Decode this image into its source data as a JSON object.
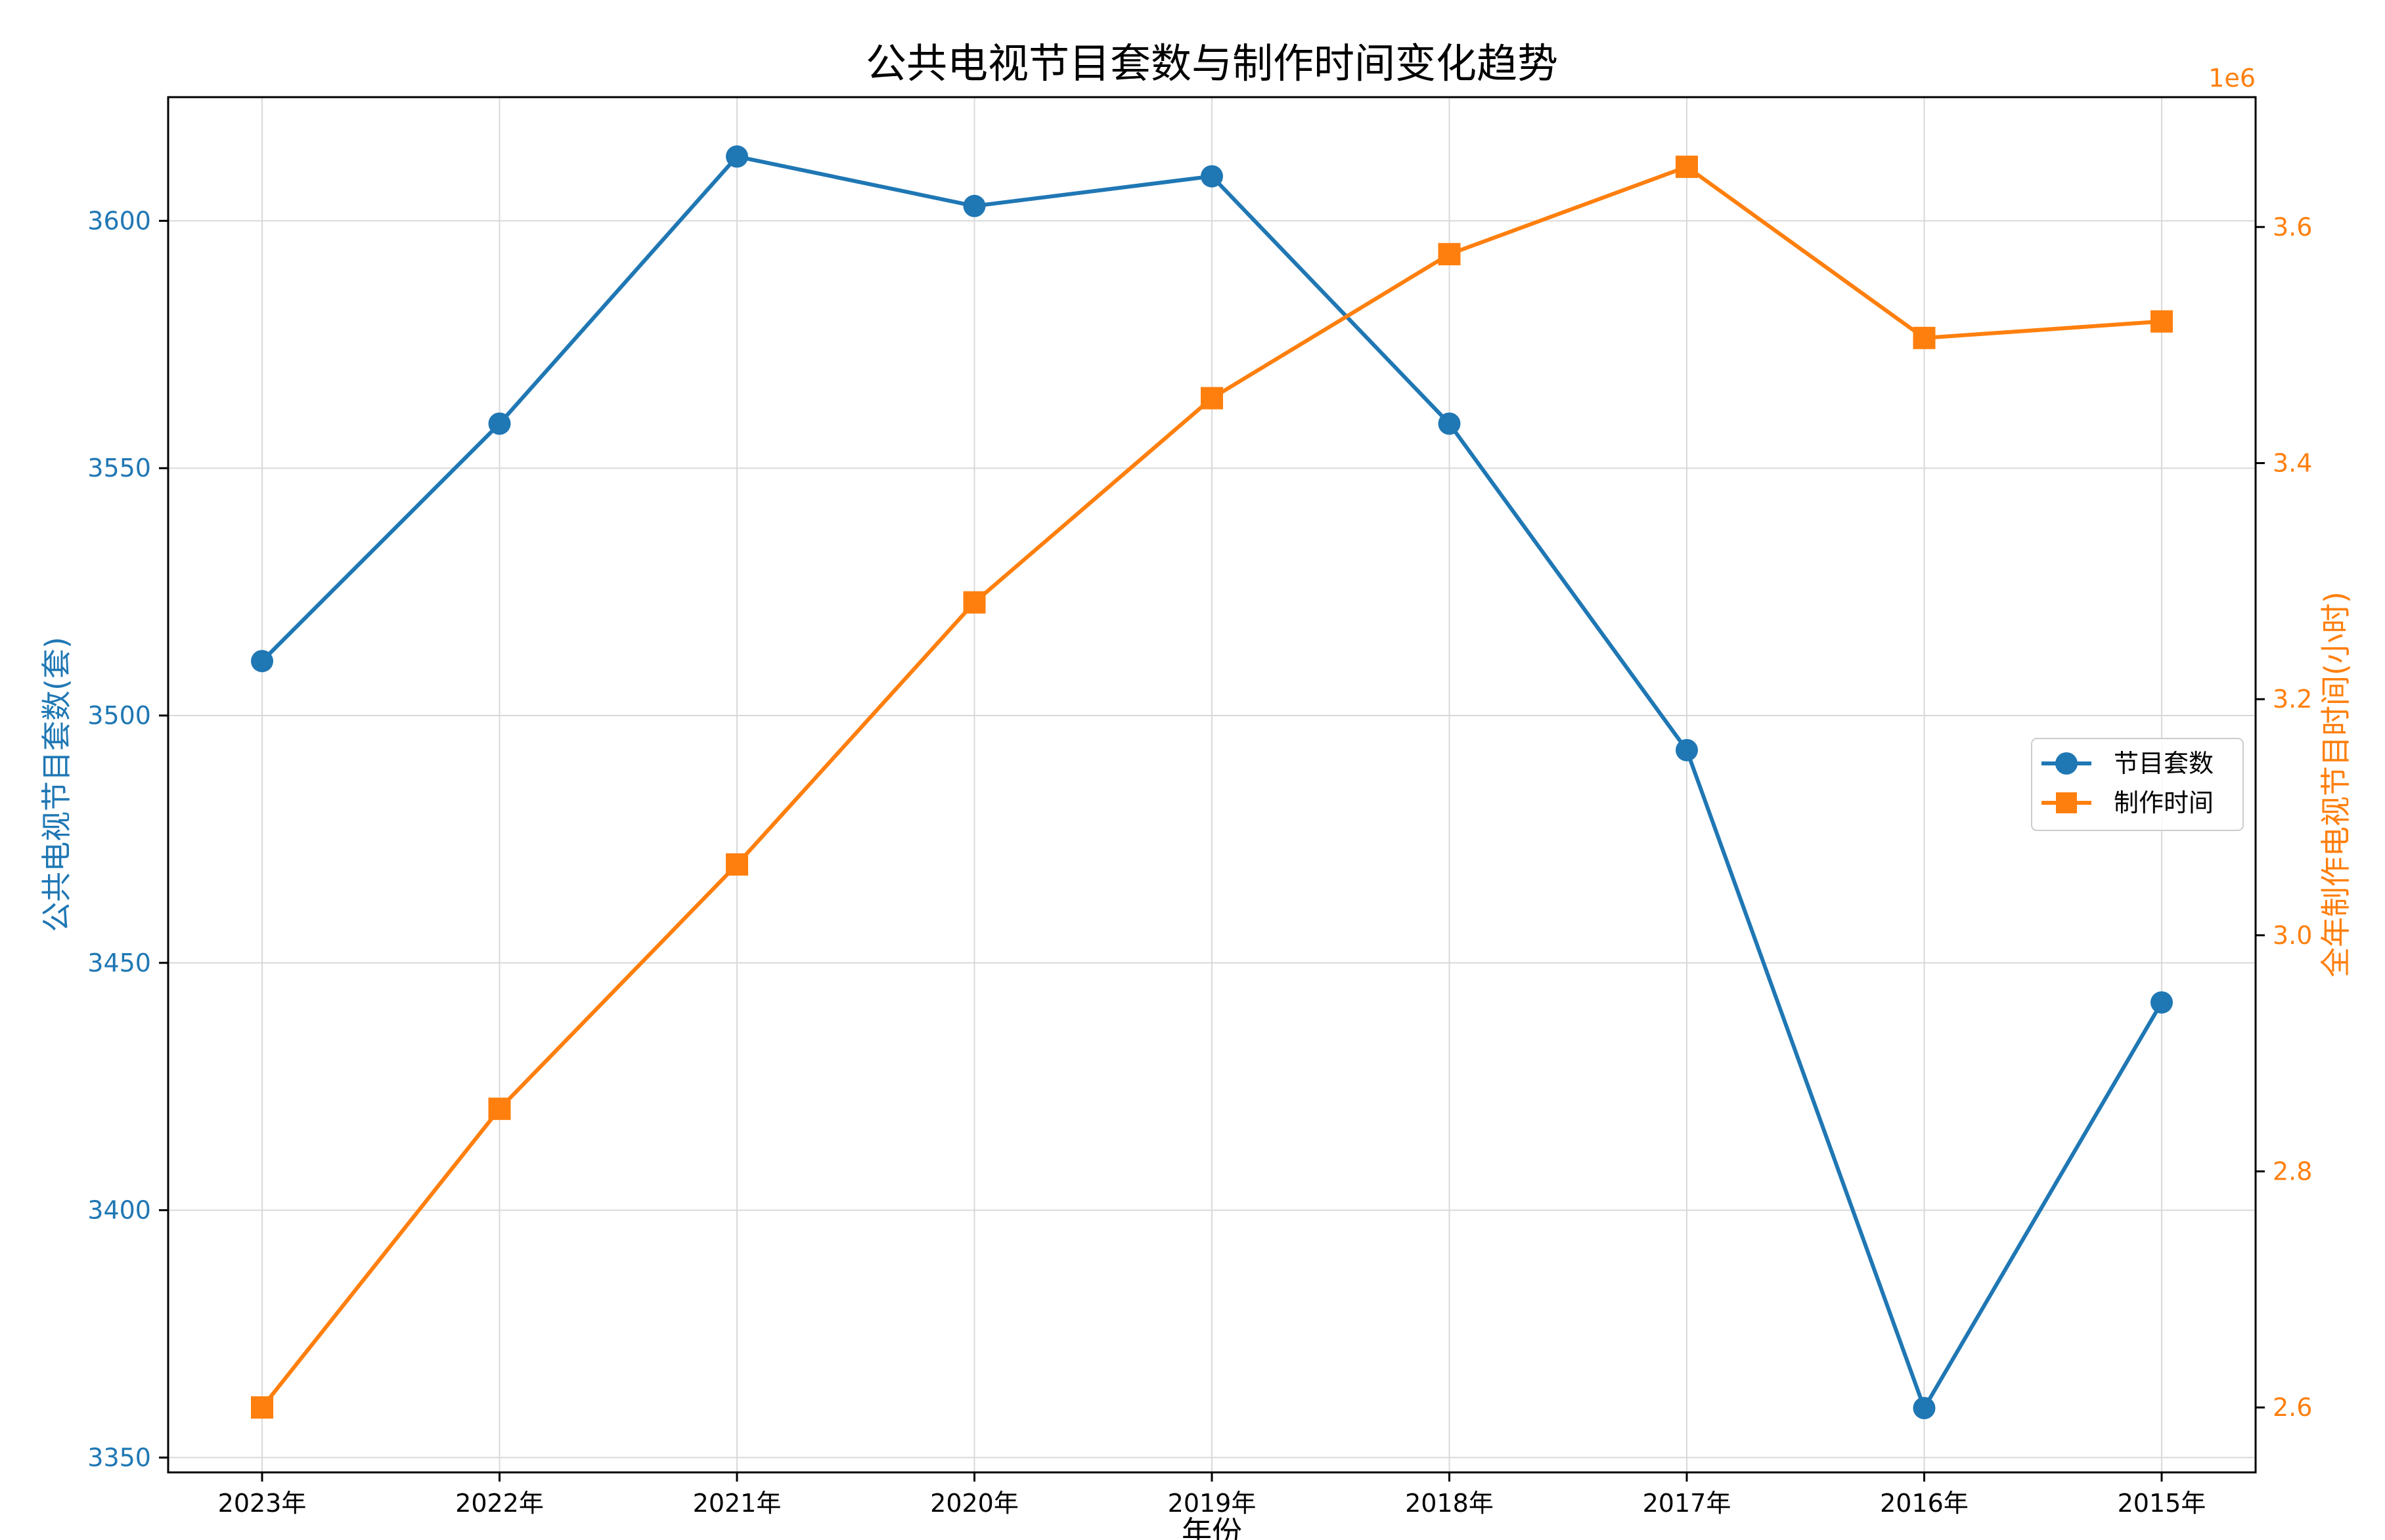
{
  "chart_data": {
    "type": "line",
    "title": "公共电视节目套数与制作时间变化趋势",
    "xlabel": "年份",
    "categories": [
      "2023年",
      "2022年",
      "2021年",
      "2020年",
      "2019年",
      "2018年",
      "2017年",
      "2016年",
      "2015年"
    ],
    "grid": true,
    "legend_position": "center-right",
    "y_left": {
      "label": "公共电视节目套数(套)",
      "lim": [
        3347,
        3625
      ],
      "ticks": [
        "3350",
        "3400",
        "3450",
        "3500",
        "3550",
        "3600"
      ],
      "color": "#1f77b4"
    },
    "y_right": {
      "label": "全年制作电视节目时间(小时)",
      "offset_text": "1e6",
      "lim": [
        2.545,
        3.71
      ],
      "ticks": [
        "2.6",
        "2.8",
        "3.0",
        "3.2",
        "3.4",
        "3.6"
      ],
      "color": "#ff7f0e"
    },
    "series": [
      {
        "name": "节目套数",
        "axis": "left",
        "marker": "circle",
        "color": "#1f77b4",
        "values": [
          3511,
          3559,
          3613,
          3603,
          3609,
          3559,
          3493,
          3360,
          3442
        ]
      },
      {
        "name": "制作时间",
        "axis": "right",
        "marker": "square",
        "color": "#ff7f0e",
        "values": [
          2.6,
          2.853,
          3.06,
          3.282,
          3.455,
          3.577,
          3.651,
          3.506,
          3.52
        ]
      }
    ]
  }
}
